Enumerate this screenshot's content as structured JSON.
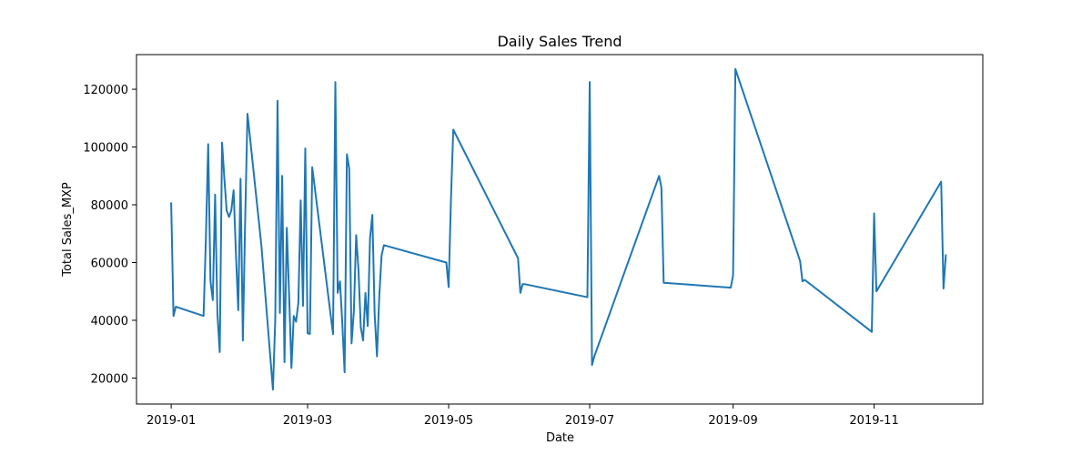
{
  "chart_data": {
    "type": "line",
    "title": "Daily Sales Trend",
    "xlabel": "Date",
    "ylabel": "Total Sales_MXP",
    "xlim": [
      "2018-12-17",
      "2019-12-18"
    ],
    "ylim": [
      11000,
      132000
    ],
    "x_ticks": [
      "2019-01-01",
      "2019-03-01",
      "2019-05-01",
      "2019-07-01",
      "2019-09-01",
      "2019-11-01"
    ],
    "x_tick_labels": [
      "2019-01",
      "2019-03",
      "2019-05",
      "2019-07",
      "2019-09",
      "2019-11"
    ],
    "y_ticks": [
      20000,
      40000,
      60000,
      80000,
      100000,
      120000
    ],
    "y_tick_labels": [
      "20000",
      "40000",
      "60000",
      "80000",
      "100000",
      "120000"
    ],
    "grid": false,
    "series": [
      {
        "color": "#1f77b4",
        "x": [
          "2019-01-01",
          "2019-01-02",
          "2019-01-03",
          "2019-01-15",
          "2019-01-16",
          "2019-01-17",
          "2019-01-18",
          "2019-01-19",
          "2019-01-20",
          "2019-01-21",
          "2019-01-22",
          "2019-01-23",
          "2019-01-24",
          "2019-01-25",
          "2019-01-26",
          "2019-01-27",
          "2019-01-28",
          "2019-01-29",
          "2019-01-30",
          "2019-01-31",
          "2019-02-01",
          "2019-02-02",
          "2019-02-03",
          "2019-02-09",
          "2019-02-14",
          "2019-02-15",
          "2019-02-16",
          "2019-02-17",
          "2019-02-18",
          "2019-02-19",
          "2019-02-20",
          "2019-02-21",
          "2019-02-22",
          "2019-02-23",
          "2019-02-24",
          "2019-02-25",
          "2019-02-26",
          "2019-02-27",
          "2019-02-28",
          "2019-03-01",
          "2019-03-02",
          "2019-03-03",
          "2019-03-12",
          "2019-03-13",
          "2019-03-14",
          "2019-03-15",
          "2019-03-16",
          "2019-03-17",
          "2019-03-18",
          "2019-03-19",
          "2019-03-20",
          "2019-03-21",
          "2019-03-22",
          "2019-03-23",
          "2019-03-24",
          "2019-03-25",
          "2019-03-26",
          "2019-03-27",
          "2019-03-28",
          "2019-03-29",
          "2019-03-30",
          "2019-03-31",
          "2019-04-01",
          "2019-04-02",
          "2019-04-03",
          "2019-04-30",
          "2019-05-01",
          "2019-05-02",
          "2019-05-03",
          "2019-05-31",
          "2019-06-01",
          "2019-06-02",
          "2019-06-03",
          "2019-06-30",
          "2019-07-01",
          "2019-07-02",
          "2019-07-03",
          "2019-07-31",
          "2019-08-01",
          "2019-08-02",
          "2019-08-31",
          "2019-09-01",
          "2019-09-02",
          "2019-09-30",
          "2019-10-01",
          "2019-10-02",
          "2019-10-31",
          "2019-11-01",
          "2019-11-02",
          "2019-11-30",
          "2019-12-01",
          "2019-12-02"
        ],
        "values": [
          80500,
          41500,
          44700,
          41500,
          68000,
          101000,
          53500,
          47000,
          83500,
          42000,
          29000,
          101500,
          89000,
          78000,
          75800,
          78000,
          85000,
          63000,
          43500,
          89000,
          33000,
          75000,
          111500,
          66000,
          16000,
          40000,
          116000,
          42500,
          90000,
          25500,
          72000,
          49000,
          23500,
          41500,
          39500,
          46000,
          81500,
          45000,
          99500,
          35500,
          35300,
          93000,
          35200,
          122500,
          49500,
          53500,
          39000,
          22000,
          97500,
          92500,
          32000,
          43000,
          69500,
          57500,
          37500,
          33000,
          49500,
          38000,
          68500,
          76500,
          42000,
          27500,
          48500,
          62500,
          66000,
          60000,
          51500,
          82000,
          106000,
          61500,
          49500,
          52500,
          52500,
          48000,
          122500,
          24500,
          27500,
          90000,
          86000,
          53000,
          51300,
          55500,
          127000,
          60500,
          53500,
          54000,
          36000,
          77000,
          50000,
          88000,
          51000,
          62500
        ]
      }
    ]
  }
}
